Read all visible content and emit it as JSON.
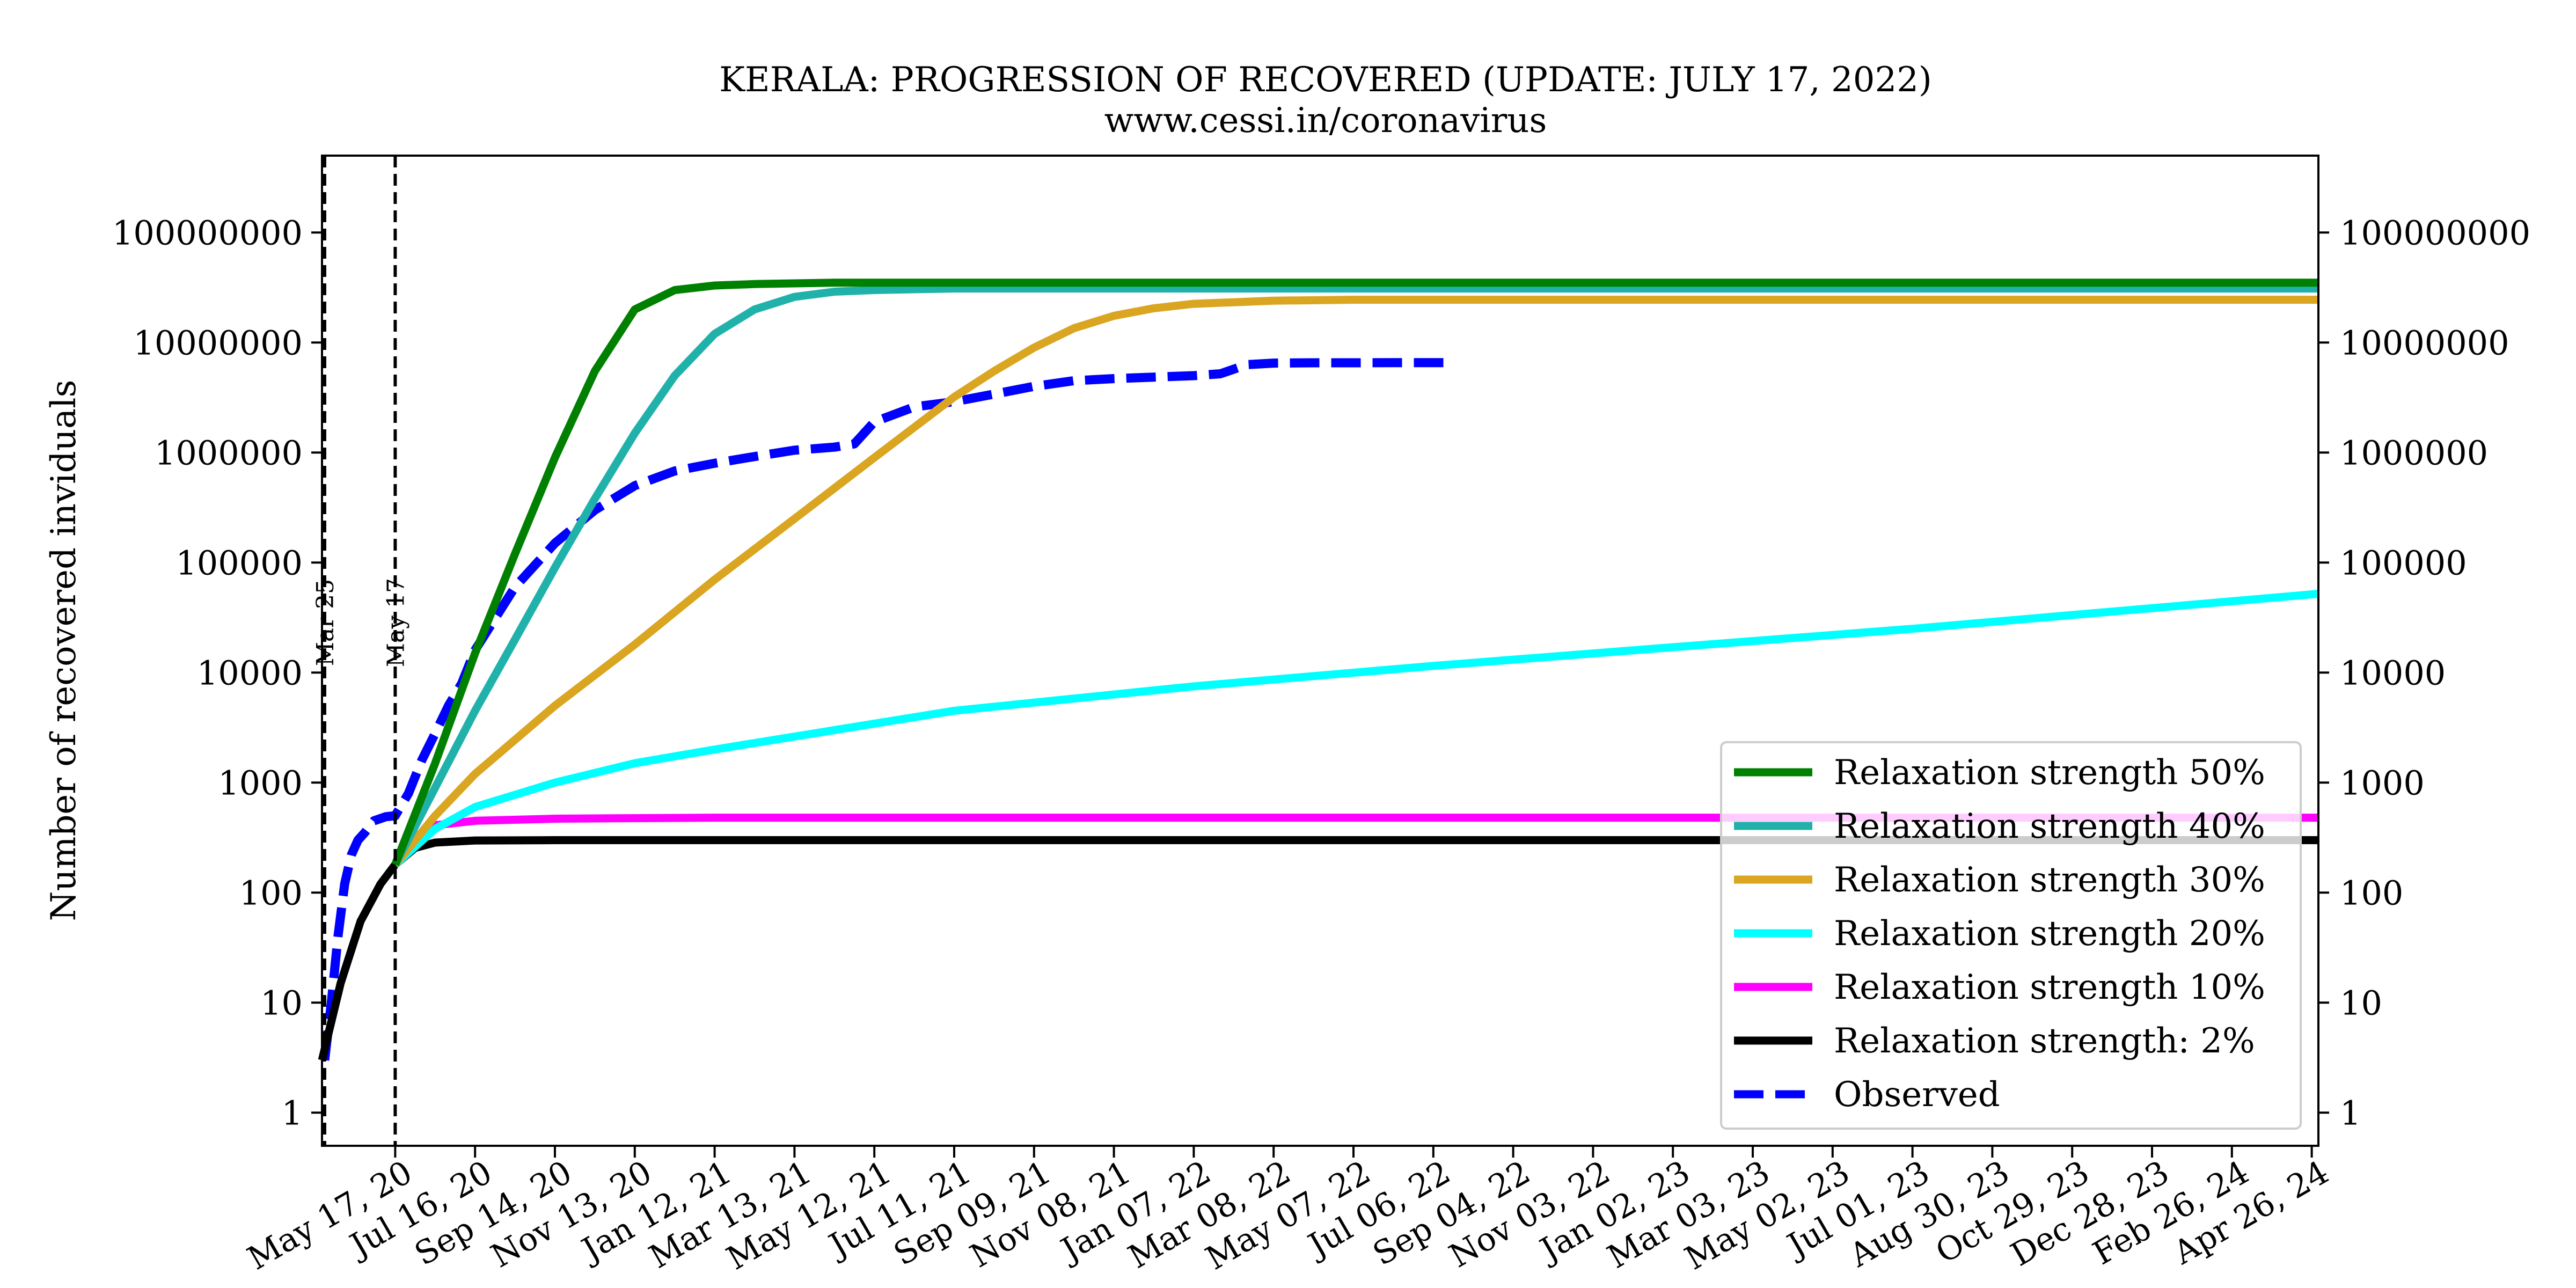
{
  "chart_data": {
    "type": "line",
    "title": "KERALA: PROGRESSION OF RECOVERED (UPDATE: JULY 17, 2022)",
    "subtitle": "www.cessi.in/coronavirus",
    "ylabel": "Number of recovered inviduals",
    "yscale": "log",
    "ylim": [
      0.5,
      500000000
    ],
    "y_ticks": [
      1,
      10,
      100,
      1000,
      10000,
      100000,
      1000000,
      10000000,
      100000000
    ],
    "y_tick_labels": [
      "1",
      "10",
      "100",
      "1000",
      "10000",
      "100000",
      "1000000",
      "10000000",
      "100000000"
    ],
    "xlim": [
      "2020-03-23",
      "2024-05-01"
    ],
    "x_ticks": [
      "2020-05-17",
      "2020-07-16",
      "2020-09-14",
      "2020-11-13",
      "2021-01-12",
      "2021-03-13",
      "2021-05-12",
      "2021-07-11",
      "2021-09-09",
      "2021-11-08",
      "2022-01-07",
      "2022-03-08",
      "2022-05-07",
      "2022-07-06",
      "2022-09-04",
      "2022-11-03",
      "2023-01-02",
      "2023-03-03",
      "2023-05-02",
      "2023-07-01",
      "2023-08-30",
      "2023-10-29",
      "2023-12-28",
      "2024-02-26",
      "2024-04-26"
    ],
    "x_tick_labels": [
      "May 17, 20",
      "Jul 16, 20",
      "Sep 14, 20",
      "Nov 13, 20",
      "Jan 12, 21",
      "Mar 13, 21",
      "May 12, 21",
      "Jul 11, 21",
      "Sep 09, 21",
      "Nov 08, 21",
      "Jan 07, 22",
      "Mar 08, 22",
      "May 07, 22",
      "Jul 06, 22",
      "Sep 04, 22",
      "Nov 03, 22",
      "Jan 02, 23",
      "Mar 03, 23",
      "May 02, 23",
      "Jul 01, 23",
      "Aug 30, 23",
      "Oct 29, 23",
      "Dec 28, 23",
      "Feb 26, 24",
      "Apr 26, 24"
    ],
    "events": [
      {
        "date": "2020-03-25",
        "label": "Mar 25"
      },
      {
        "date": "2020-05-17",
        "label": "May 17"
      }
    ],
    "grid": false,
    "legend_position": "lower right",
    "series": [
      {
        "name": "Relaxation strength 50%",
        "color": "#008000",
        "style": "solid",
        "x": [
          "2020-05-17",
          "2020-06-16",
          "2020-07-16",
          "2020-08-15",
          "2020-09-14",
          "2020-10-14",
          "2020-11-13",
          "2020-12-13",
          "2021-01-12",
          "2021-02-11",
          "2021-03-13",
          "2021-04-12",
          "2021-05-12",
          "2021-07-11",
          "2022-01-07",
          "2023-01-02",
          "2024-05-01"
        ],
        "y": [
          180,
          1500,
          15000,
          120000,
          900000,
          5500000,
          20000000,
          30000000,
          33000000,
          34000000,
          34500000,
          35000000,
          35000000,
          35000000,
          35000000,
          35000000,
          35000000
        ]
      },
      {
        "name": "Relaxation strength 40%",
        "color": "#20B2AA",
        "style": "solid",
        "x": [
          "2020-05-17",
          "2020-06-16",
          "2020-07-16",
          "2020-08-15",
          "2020-09-14",
          "2020-10-14",
          "2020-11-13",
          "2020-12-13",
          "2021-01-12",
          "2021-02-11",
          "2021-03-13",
          "2021-04-12",
          "2021-05-12",
          "2021-06-11",
          "2021-07-11",
          "2021-09-09",
          "2022-01-07",
          "2023-01-02",
          "2024-05-01"
        ],
        "y": [
          180,
          900,
          4500,
          20000,
          90000,
          380000,
          1500000,
          5000000,
          12000000,
          20000000,
          26000000,
          29000000,
          30000000,
          30500000,
          31000000,
          31000000,
          31000000,
          31000000,
          31000000
        ]
      },
      {
        "name": "Relaxation strength 30%",
        "color": "#DAA520",
        "style": "solid",
        "x": [
          "2020-05-17",
          "2020-06-16",
          "2020-07-16",
          "2020-09-14",
          "2020-11-13",
          "2021-01-12",
          "2021-03-13",
          "2021-05-12",
          "2021-07-11",
          "2021-08-10",
          "2021-09-09",
          "2021-10-09",
          "2021-11-08",
          "2021-12-08",
          "2022-01-07",
          "2022-03-08",
          "2022-05-07",
          "2023-01-02",
          "2024-05-01"
        ],
        "y": [
          180,
          500,
          1200,
          5000,
          18000,
          70000,
          250000,
          900000,
          3200000,
          5500000,
          9000000,
          13500000,
          17500000,
          20500000,
          22500000,
          24000000,
          24500000,
          24500000,
          24500000
        ]
      },
      {
        "name": "Relaxation strength 20%",
        "color": "#00FFFF",
        "style": "solid",
        "x": [
          "2020-05-17",
          "2020-06-16",
          "2020-07-16",
          "2020-09-14",
          "2020-11-13",
          "2021-01-12",
          "2021-07-11",
          "2022-01-07",
          "2022-07-06",
          "2023-01-02",
          "2023-07-01",
          "2024-05-01"
        ],
        "y": [
          180,
          380,
          600,
          1000,
          1500,
          2000,
          4500,
          7500,
          11500,
          17000,
          25000,
          52000
        ]
      },
      {
        "name": "Relaxation strength 10%",
        "color": "#FF00FF",
        "style": "solid",
        "x": [
          "2020-05-17",
          "2020-06-01",
          "2020-06-16",
          "2020-07-16",
          "2020-09-14",
          "2021-01-12",
          "2022-01-07",
          "2023-01-02",
          "2024-05-01"
        ],
        "y": [
          180,
          320,
          410,
          450,
          470,
          480,
          480,
          480,
          480
        ]
      },
      {
        "name": "Relaxation strength: 2%",
        "color": "#000000",
        "style": "solid",
        "x": [
          "2020-03-23",
          "2020-04-06",
          "2020-04-21",
          "2020-05-06",
          "2020-05-17",
          "2020-06-01",
          "2020-06-16",
          "2020-07-16",
          "2020-09-14",
          "2021-01-12",
          "2022-01-07",
          "2023-01-02",
          "2024-05-01"
        ],
        "y": [
          3,
          15,
          55,
          120,
          180,
          255,
          285,
          298,
          300,
          300,
          300,
          300,
          300
        ]
      },
      {
        "name": "Observed",
        "color": "#0000FF",
        "style": "dashed",
        "x": [
          "2020-03-25",
          "2020-03-30",
          "2020-04-04",
          "2020-04-09",
          "2020-04-14",
          "2020-04-19",
          "2020-04-24",
          "2020-05-01",
          "2020-05-10",
          "2020-05-17",
          "2020-05-27",
          "2020-06-06",
          "2020-06-16",
          "2020-06-26",
          "2020-07-06",
          "2020-07-16",
          "2020-08-15",
          "2020-09-14",
          "2020-10-14",
          "2020-11-13",
          "2020-12-13",
          "2021-01-12",
          "2021-02-11",
          "2021-03-13",
          "2021-04-12",
          "2021-04-27",
          "2021-05-12",
          "2021-06-11",
          "2021-07-11",
          "2021-08-10",
          "2021-09-09",
          "2021-10-09",
          "2021-11-08",
          "2021-12-08",
          "2022-01-07",
          "2022-01-27",
          "2022-02-16",
          "2022-03-08",
          "2022-04-07",
          "2022-05-07",
          "2022-06-06",
          "2022-07-06",
          "2022-07-17"
        ],
        "y": [
          3,
          10,
          40,
          120,
          220,
          300,
          350,
          450,
          490,
          500,
          800,
          1600,
          2800,
          5000,
          8000,
          16000,
          60000,
          150000,
          300000,
          500000,
          680000,
          800000,
          920000,
          1050000,
          1120000,
          1200000,
          1900000,
          2600000,
          2900000,
          3400000,
          4000000,
          4500000,
          4700000,
          4850000,
          5000000,
          5200000,
          6300000,
          6500000,
          6550000,
          6550000,
          6560000,
          6570000,
          6570000
        ]
      }
    ]
  }
}
